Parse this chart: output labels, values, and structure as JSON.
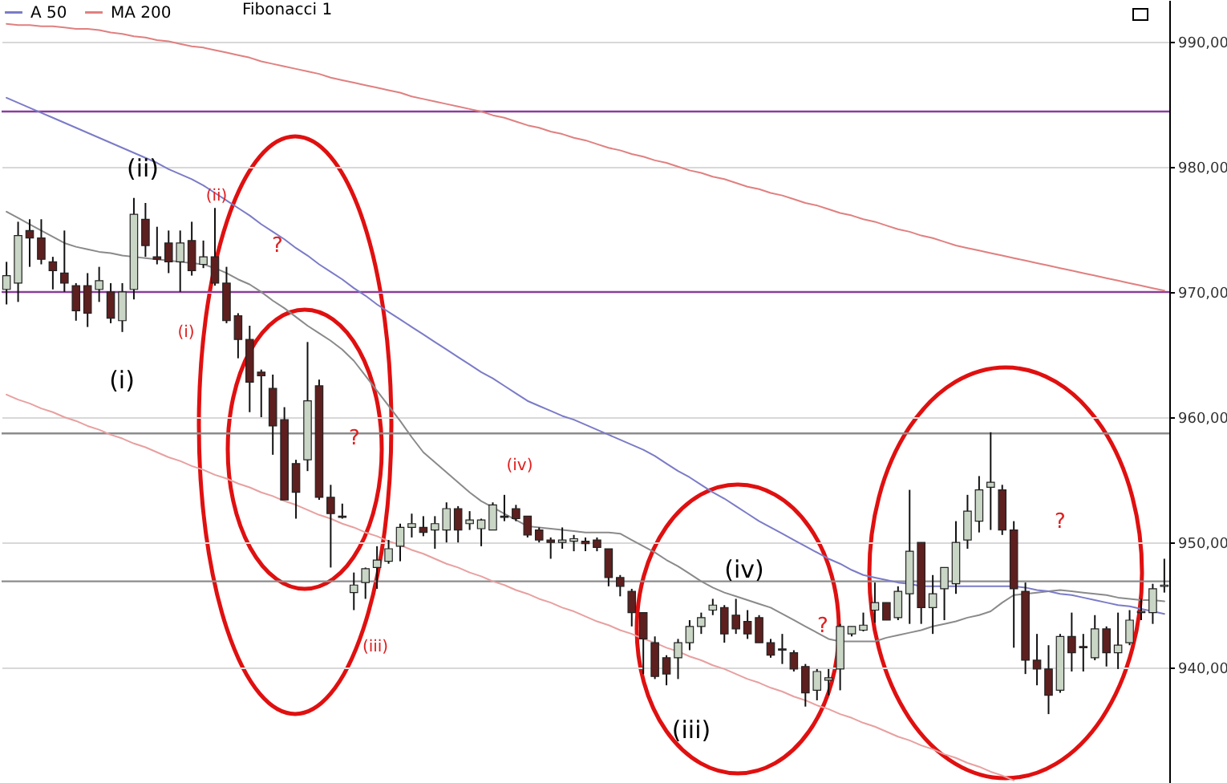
{
  "chart_data": {
    "type": "candlestick",
    "categories": [
      null,
      null,
      null,
      null,
      null,
      null,
      null,
      null,
      null,
      null,
      null,
      null,
      null,
      null,
      null,
      null,
      null,
      null,
      null,
      null,
      null,
      null,
      null,
      null,
      null,
      null,
      null,
      null,
      null,
      null,
      null,
      null,
      null,
      null,
      null,
      null,
      null,
      null,
      null,
      null,
      null,
      null,
      null,
      null,
      null,
      null,
      null,
      null,
      null,
      null,
      null,
      null,
      null,
      null,
      null,
      null,
      null,
      null,
      null,
      null,
      null,
      null,
      null,
      null,
      null,
      null,
      null,
      null,
      null,
      null,
      null,
      null,
      null,
      null,
      null,
      null,
      null,
      null,
      null,
      null,
      null,
      null,
      null,
      null,
      null,
      null,
      null,
      null,
      null,
      null,
      null,
      null,
      null,
      null,
      null,
      null,
      null,
      null,
      null,
      null,
      null
    ],
    "ohlc": [
      [
        970.2,
        972.4,
        969.0,
        971.3
      ],
      [
        970.7,
        975.6,
        969.2,
        974.5
      ],
      [
        974.9,
        975.8,
        972.0,
        974.3
      ],
      [
        974.3,
        975.8,
        972.2,
        972.6
      ],
      [
        972.4,
        972.8,
        970.2,
        971.7
      ],
      [
        971.5,
        974.9,
        970.0,
        970.7
      ],
      [
        970.5,
        970.7,
        967.7,
        968.5
      ],
      [
        970.5,
        971.5,
        967.2,
        968.3
      ],
      [
        970.2,
        972.0,
        969.2,
        970.9
      ],
      [
        970.0,
        970.7,
        967.5,
        967.9
      ],
      [
        967.7,
        970.7,
        966.8,
        970.0
      ],
      [
        970.2,
        977.5,
        969.4,
        976.2
      ],
      [
        975.8,
        977.1,
        972.8,
        973.7
      ],
      [
        972.8,
        975.2,
        972.2,
        972.6
      ],
      [
        973.9,
        974.9,
        971.5,
        972.4
      ],
      [
        972.4,
        974.9,
        970.0,
        973.9
      ],
      [
        974.1,
        975.6,
        971.3,
        971.7
      ],
      [
        972.2,
        974.1,
        971.9,
        972.8
      ],
      [
        972.8,
        976.7,
        970.5,
        970.7
      ],
      [
        970.7,
        972.0,
        967.5,
        967.7
      ],
      [
        968.1,
        968.3,
        964.7,
        966.2
      ],
      [
        966.2,
        967.3,
        960.4,
        962.8
      ],
      [
        963.6,
        963.8,
        960.0,
        963.3
      ],
      [
        962.3,
        963.4,
        957.0,
        959.3
      ],
      [
        959.8,
        960.8,
        953.4,
        953.4
      ],
      [
        956.3,
        956.6,
        951.9,
        954.0
      ],
      [
        956.6,
        966.0,
        955.7,
        961.3
      ],
      [
        962.5,
        963.0,
        953.4,
        953.6
      ],
      [
        953.6,
        954.6,
        948.0,
        952.3
      ],
      [
        952.1,
        953.1,
        951.9,
        952.0
      ],
      [
        946.0,
        947.6,
        944.6,
        946.6
      ],
      [
        946.8,
        948.0,
        945.5,
        947.9
      ],
      [
        948.0,
        949.7,
        946.3,
        948.6
      ],
      [
        948.5,
        950.2,
        948.3,
        949.5
      ],
      [
        949.7,
        951.5,
        948.5,
        951.2
      ],
      [
        951.2,
        952.3,
        950.4,
        951.5
      ],
      [
        951.2,
        952.1,
        950.5,
        950.8
      ],
      [
        951.0,
        952.1,
        949.5,
        951.5
      ],
      [
        951.0,
        953.2,
        950.0,
        952.7
      ],
      [
        952.7,
        952.9,
        950.0,
        951.0
      ],
      [
        951.5,
        952.5,
        951.0,
        951.8
      ],
      [
        951.1,
        951.9,
        949.7,
        951.8
      ],
      [
        951.0,
        953.2,
        951.0,
        953.0
      ],
      [
        952.1,
        953.8,
        951.7,
        952.0
      ],
      [
        952.7,
        953.0,
        951.7,
        951.9
      ],
      [
        952.1,
        952.1,
        950.4,
        950.6
      ],
      [
        951.0,
        951.2,
        950.0,
        950.2
      ],
      [
        950.2,
        950.4,
        948.7,
        950.0
      ],
      [
        950.0,
        951.2,
        949.5,
        950.2
      ],
      [
        950.1,
        950.6,
        949.3,
        950.3
      ],
      [
        950.1,
        950.4,
        949.3,
        949.9
      ],
      [
        950.2,
        950.4,
        949.3,
        949.6
      ],
      [
        949.5,
        949.5,
        946.5,
        947.2
      ],
      [
        947.2,
        947.4,
        945.7,
        946.5
      ],
      [
        946.1,
        946.3,
        943.3,
        944.4
      ],
      [
        944.4,
        944.4,
        939.5,
        942.3
      ],
      [
        942.0,
        942.5,
        939.1,
        939.3
      ],
      [
        940.8,
        941.0,
        938.6,
        939.5
      ],
      [
        940.8,
        942.3,
        939.1,
        942.0
      ],
      [
        942.0,
        943.8,
        941.4,
        943.3
      ],
      [
        943.3,
        944.4,
        942.7,
        944.0
      ],
      [
        944.6,
        945.5,
        944.2,
        945.0
      ],
      [
        944.8,
        945.0,
        942.0,
        942.7
      ],
      [
        944.2,
        945.5,
        942.7,
        943.1
      ],
      [
        943.7,
        944.6,
        942.3,
        942.7
      ],
      [
        944.0,
        944.2,
        942.0,
        942.0
      ],
      [
        942.0,
        942.3,
        940.8,
        941.0
      ],
      [
        941.5,
        942.7,
        940.3,
        941.4
      ],
      [
        941.2,
        941.4,
        939.7,
        939.9
      ],
      [
        940.1,
        940.3,
        936.9,
        938.0
      ],
      [
        938.2,
        939.9,
        937.4,
        939.7
      ],
      [
        939.0,
        939.9,
        937.8,
        939.2
      ],
      [
        939.9,
        943.5,
        938.2,
        943.3
      ],
      [
        942.7,
        943.3,
        942.5,
        943.3
      ],
      [
        943.0,
        944.4,
        942.9,
        943.4
      ],
      [
        944.6,
        946.8,
        943.6,
        945.2
      ],
      [
        945.2,
        945.2,
        943.8,
        943.8
      ],
      [
        944.0,
        946.5,
        943.8,
        946.1
      ],
      [
        945.9,
        954.2,
        943.5,
        949.3
      ],
      [
        950.0,
        950.0,
        943.5,
        944.8
      ],
      [
        944.8,
        947.4,
        942.7,
        945.9
      ],
      [
        946.3,
        948.0,
        943.8,
        948.0
      ],
      [
        946.7,
        951.7,
        945.9,
        950.0
      ],
      [
        950.2,
        953.8,
        949.5,
        952.5
      ],
      [
        951.7,
        955.3,
        950.8,
        954.2
      ],
      [
        954.4,
        958.8,
        951.0,
        954.8
      ],
      [
        954.2,
        954.6,
        950.6,
        951.0
      ],
      [
        951.0,
        951.7,
        941.6,
        946.3
      ],
      [
        946.1,
        946.8,
        939.5,
        940.6
      ],
      [
        940.6,
        942.7,
        938.6,
        939.9
      ],
      [
        939.9,
        941.8,
        936.3,
        937.8
      ],
      [
        938.2,
        942.7,
        938.0,
        942.5
      ],
      [
        942.5,
        944.4,
        939.7,
        941.2
      ],
      [
        941.7,
        942.7,
        939.7,
        941.6
      ],
      [
        940.8,
        944.2,
        940.6,
        943.1
      ],
      [
        943.1,
        943.3,
        940.1,
        941.2
      ],
      [
        941.2,
        944.4,
        939.9,
        941.8
      ],
      [
        942.0,
        944.6,
        941.8,
        943.8
      ],
      [
        944.4,
        945.5,
        943.8,
        944.5
      ],
      [
        944.4,
        946.7,
        943.5,
        946.3
      ],
      [
        946.5,
        948.7,
        946.0,
        946.6
      ]
    ],
    "colors": [
      "#c9d5c5",
      "#c9d5c5",
      "#5e1f1f",
      "#5e1f1f",
      "#5e1f1f",
      "#5e1f1f",
      "#5e1f1f",
      "#5e1f1f",
      "#c9d5c5",
      "#5e1f1f",
      "#c9d5c5",
      "#c9d5c5",
      "#5e1f1f",
      "#5e1f1f",
      "#5e1f1f",
      "#c9d5c5",
      "#5e1f1f",
      "#c9d5c5",
      "#5e1f1f",
      "#5e1f1f",
      "#5e1f1f",
      "#5e1f1f",
      "#5e1f1f",
      "#5e1f1f",
      "#5e1f1f",
      "#5e1f1f",
      "#c9d5c5",
      "#5e1f1f",
      "#5e1f1f",
      "#5e1f1f",
      "#c9d5c5",
      "#c9d5c5",
      "#c9d5c5",
      "#c9d5c5",
      "#c9d5c5",
      "#c9d5c5",
      "#5e1f1f",
      "#c9d5c5",
      "#c9d5c5",
      "#5e1f1f",
      "#c9d5c5",
      "#c9d5c5",
      "#c9d5c5",
      "#5e1f1f",
      "#5e1f1f",
      "#5e1f1f",
      "#5e1f1f",
      "#5e1f1f",
      "#c9d5c5",
      "#c9d5c5",
      "#5e1f1f",
      "#5e1f1f",
      "#5e1f1f",
      "#5e1f1f",
      "#5e1f1f",
      "#5e1f1f",
      "#5e1f1f",
      "#5e1f1f",
      "#c9d5c5",
      "#c9d5c5",
      "#c9d5c5",
      "#c9d5c5",
      "#5e1f1f",
      "#5e1f1f",
      "#5e1f1f",
      "#5e1f1f",
      "#5e1f1f",
      "#5e1f1f",
      "#5e1f1f",
      "#5e1f1f",
      "#c9d5c5",
      "#c9d5c5",
      "#c9d5c5",
      "#c9d5c5",
      "#c9d5c5",
      "#c9d5c5",
      "#5e1f1f",
      "#c9d5c5",
      "#c9d5c5",
      "#5e1f1f",
      "#c9d5c5",
      "#c9d5c5",
      "#c9d5c5",
      "#c9d5c5",
      "#c9d5c5",
      "#c9d5c5",
      "#5e1f1f",
      "#5e1f1f",
      "#5e1f1f",
      "#5e1f1f",
      "#5e1f1f",
      "#c9d5c5",
      "#5e1f1f",
      "#5e1f1f",
      "#c9d5c5",
      "#5e1f1f",
      "#c9d5c5",
      "#c9d5c5",
      "#c9d5c5",
      "#c9d5c5",
      "#c9d5c5"
    ],
    "series": [
      {
        "name": "A 50",
        "type": "line",
        "color": "#7b7bc8",
        "values": [
          985.5,
          985.1,
          984.7,
          984.3,
          983.9,
          983.5,
          983.1,
          982.7,
          982.3,
          981.9,
          981.5,
          981.1,
          980.7,
          980.3,
          979.8,
          979.4,
          979.0,
          978.5,
          977.9,
          977.3,
          976.7,
          976.1,
          975.4,
          974.8,
          974.2,
          973.5,
          972.9,
          972.2,
          971.6,
          971.0,
          970.3,
          969.7,
          969.0,
          968.4,
          967.8,
          967.2,
          966.6,
          966.0,
          965.4,
          964.8,
          964.2,
          963.6,
          963.1,
          962.5,
          961.9,
          961.3,
          960.9,
          960.5,
          960.1,
          959.8,
          959.4,
          959.0,
          958.6,
          958.2,
          957.8,
          957.4,
          956.9,
          956.3,
          955.7,
          955.2,
          954.6,
          954.0,
          953.5,
          952.9,
          952.3,
          951.7,
          951.2,
          950.7,
          950.2,
          949.7,
          949.2,
          948.7,
          948.3,
          947.8,
          947.4,
          947.2,
          947.0,
          946.8,
          946.7,
          946.5,
          946.5,
          946.5,
          946.5,
          946.5,
          946.5,
          946.5,
          946.5,
          946.5,
          946.4,
          946.2,
          946.1,
          945.9,
          945.8,
          945.6,
          945.4,
          945.2,
          945.0,
          944.9,
          944.7,
          944.5,
          944.3
        ]
      },
      {
        "name": "MA 200",
        "type": "line",
        "color": "#e08080",
        "values": [
          991.4,
          991.3,
          991.3,
          991.2,
          991.2,
          991.1,
          991.0,
          991.0,
          990.9,
          990.7,
          990.6,
          990.4,
          990.3,
          990.1,
          990.0,
          989.8,
          989.6,
          989.5,
          989.3,
          989.1,
          988.9,
          988.7,
          988.4,
          988.2,
          988.0,
          987.8,
          987.6,
          987.4,
          987.1,
          986.9,
          986.7,
          986.5,
          986.3,
          986.1,
          985.9,
          985.6,
          985.4,
          985.2,
          985.0,
          984.8,
          984.6,
          984.4,
          984.1,
          983.9,
          983.6,
          983.3,
          983.1,
          982.8,
          982.6,
          982.3,
          982.1,
          981.8,
          981.5,
          981.3,
          981.0,
          980.8,
          980.5,
          980.3,
          980.0,
          979.7,
          979.5,
          979.2,
          979.0,
          978.7,
          978.4,
          978.2,
          977.9,
          977.7,
          977.4,
          977.1,
          976.9,
          976.6,
          976.3,
          976.1,
          975.8,
          975.6,
          975.3,
          975.0,
          974.8,
          974.5,
          974.3,
          974.0,
          973.7,
          973.5,
          973.3,
          973.1,
          972.9,
          972.7,
          972.5,
          972.3,
          972.1,
          971.9,
          971.7,
          971.5,
          971.3,
          971.1,
          970.9,
          970.7,
          970.5,
          970.3,
          970.1
        ]
      },
      {
        "type": "line",
        "color": "#8a8a8a",
        "values": [
          976.4,
          975.9,
          975.4,
          974.9,
          974.4,
          973.9,
          973.6,
          973.4,
          973.2,
          973.1,
          972.9,
          972.8,
          972.7,
          972.6,
          972.5,
          972.4,
          972.3,
          972.2,
          971.9,
          971.5,
          971.0,
          970.6,
          970.0,
          969.3,
          968.7,
          968.0,
          967.3,
          966.7,
          966.1,
          965.4,
          964.5,
          963.3,
          962.1,
          960.9,
          959.7,
          958.4,
          957.2,
          956.4,
          955.6,
          954.8,
          954.0,
          953.3,
          952.8,
          952.3,
          951.8,
          951.3,
          951.2,
          951.1,
          951.0,
          950.9,
          950.8,
          950.8,
          950.8,
          950.7,
          950.2,
          949.7,
          949.2,
          948.6,
          948.1,
          947.5,
          946.9,
          946.4,
          946.0,
          945.7,
          945.4,
          945.1,
          944.8,
          944.3,
          943.8,
          943.3,
          942.8,
          942.3,
          942.1,
          942.1,
          942.1,
          942.1,
          942.4,
          942.6,
          942.8,
          943.0,
          943.3,
          943.5,
          943.7,
          944.0,
          944.2,
          944.5,
          945.2,
          945.8,
          945.9,
          946.0,
          946.1,
          946.2,
          946.1,
          946.0,
          945.9,
          945.8,
          945.6,
          945.5,
          945.4,
          945.4,
          945.3
        ]
      },
      {
        "type": "line",
        "color": "#e8a0a0",
        "values": [
          961.8,
          961.4,
          961.1,
          960.7,
          960.4,
          960.0,
          959.7,
          959.3,
          959.0,
          958.6,
          958.3,
          957.9,
          957.6,
          957.2,
          956.8,
          956.5,
          956.1,
          955.8,
          955.4,
          955.1,
          954.7,
          954.4,
          954.0,
          953.7,
          953.3,
          953.0,
          952.6,
          952.2,
          951.9,
          951.5,
          951.2,
          950.8,
          950.5,
          950.1,
          949.8,
          949.4,
          949.1,
          948.7,
          948.3,
          948.0,
          947.6,
          947.3,
          946.9,
          946.6,
          946.2,
          945.9,
          945.5,
          945.2,
          944.8,
          944.5,
          944.1,
          943.7,
          943.4,
          943.0,
          942.7,
          942.3,
          942.0,
          941.6,
          941.3,
          940.9,
          940.6,
          940.2,
          939.9,
          939.5,
          939.1,
          938.8,
          938.4,
          938.1,
          937.7,
          937.4,
          937.0,
          936.7,
          936.3,
          936.0,
          935.6,
          935.3,
          934.9,
          934.5,
          934.2,
          933.8,
          933.5,
          933.1,
          932.8,
          932.4,
          932.1,
          931.7,
          931.4,
          931.0,
          null,
          null,
          null,
          null,
          null,
          null,
          null,
          null,
          null,
          null,
          null,
          null,
          null
        ]
      }
    ],
    "ref_lines": [
      {
        "axis": "y",
        "value": 984.4,
        "color": "#8b3d9e"
      },
      {
        "axis": "y",
        "value": 970,
        "color": "#8b3d9e"
      },
      {
        "axis": "y",
        "value": 958.7,
        "color": "#8c8c8c"
      },
      {
        "axis": "y",
        "value": 946.9,
        "color": "#8c8c8c"
      }
    ],
    "annotations": [
      "(ii)",
      "(i)",
      "(iii)",
      "(iv)",
      "(ii)",
      "(i)",
      "(iv)",
      "(iii)",
      "?",
      "?",
      "?",
      "?",
      "Fibonacci 1"
    ],
    "ylim": [
      930.8,
      993.3
    ],
    "yticks": [
      {
        "value": 940,
        "label": "940,00"
      },
      {
        "value": 950,
        "label": "950,00"
      },
      {
        "value": 960,
        "label": "960,00"
      },
      {
        "value": 970,
        "label": "970,00"
      },
      {
        "value": 980,
        "label": "980,00"
      },
      {
        "value": 990,
        "label": "990,00"
      }
    ],
    "tick_labels": "y",
    "grid": "y",
    "legend": "top left"
  }
}
